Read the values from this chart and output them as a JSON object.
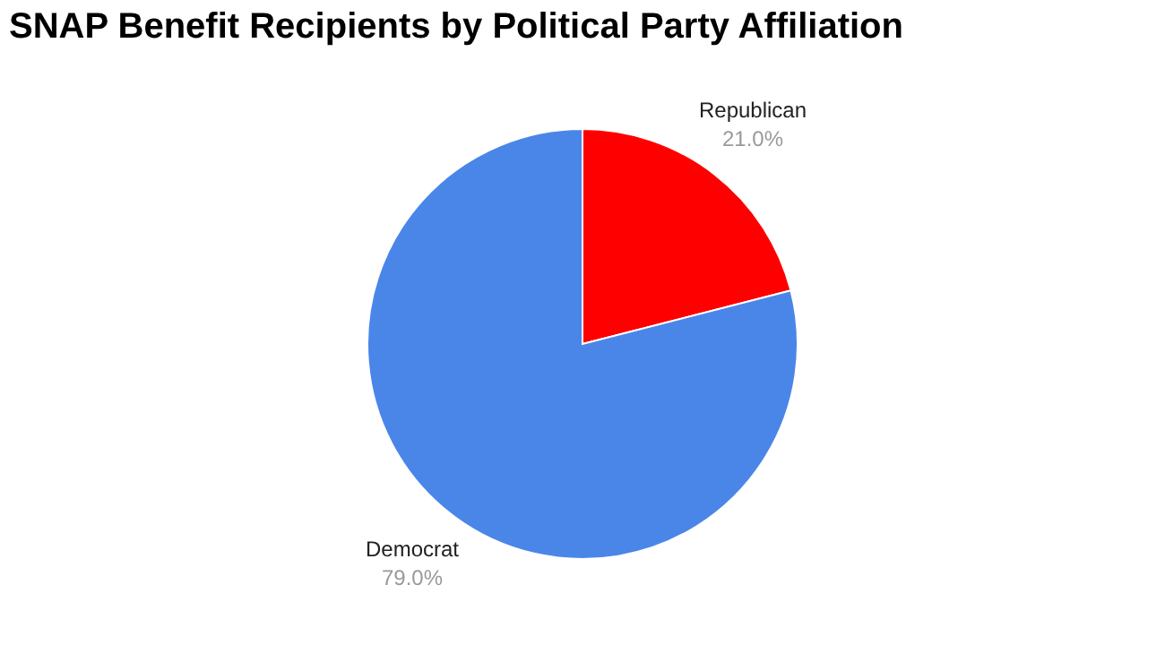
{
  "chart_data": {
    "type": "pie",
    "title": "SNAP Benefit Recipients by Political Party Affiliation",
    "categories": [
      "Republican",
      "Democrat"
    ],
    "values": [
      21.0,
      79.0
    ],
    "colors": [
      "#ff0000",
      "#4a86e8"
    ],
    "value_labels": [
      "21.0%",
      "79.0%"
    ],
    "legend": false
  }
}
